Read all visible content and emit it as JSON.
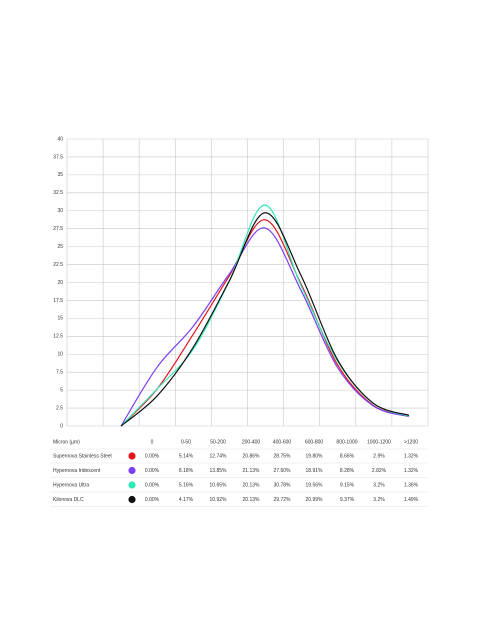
{
  "chart_data": {
    "type": "line",
    "categories": [
      "0",
      "0-50",
      "50-200",
      "200-400",
      "400-600",
      "600-800",
      "800-1000",
      "1000-1200",
      ">1200"
    ],
    "ylim": [
      0,
      40
    ],
    "yticks": [
      0,
      2.5,
      5,
      7.5,
      10,
      12.5,
      15,
      17.5,
      20,
      22.5,
      25,
      27.5,
      30,
      32.5,
      35,
      37.5,
      40
    ],
    "grid": true,
    "table_header": "Micron (µm)",
    "series": [
      {
        "name": "Supernova Stainless Steel",
        "color": "#e8141c",
        "values": [
          0.0,
          5.14,
          12.74,
          20.86,
          28.75,
          19.8,
          8.66,
          2.9,
          1.32
        ],
        "value_labels": [
          "0.00%",
          "5.14%",
          "12.74%",
          "20.86%",
          "28.75%",
          "19.80%",
          "8.66%",
          "2.9%",
          "1.32%"
        ]
      },
      {
        "name": "Hypernova Iridescent",
        "color": "#7b3ff2",
        "values": [
          0.0,
          8.18,
          13.85,
          21.13,
          27.6,
          18.91,
          8.28,
          2.82,
          1.32
        ],
        "value_labels": [
          "0.00%",
          "8.18%",
          "13.85%",
          "21.13%",
          "27.60%",
          "18.91%",
          "8.28%",
          "2.82%",
          "1.32%"
        ]
      },
      {
        "name": "Hypernova Ultra",
        "color": "#2ee8b8",
        "values": [
          0.0,
          5.16,
          10.65,
          20.13,
          30.78,
          19.56,
          9.15,
          3.2,
          1.36
        ],
        "value_labels": [
          "0.00%",
          "5.16%",
          "10.65%",
          "20.13%",
          "30.78%",
          "19.56%",
          "9.15%",
          "3.2%",
          "1.36%"
        ]
      },
      {
        "name": "Kilonova DLC",
        "color": "#111111",
        "values": [
          0.0,
          4.17,
          10.92,
          20.13,
          29.72,
          20.99,
          9.37,
          3.2,
          1.49
        ],
        "value_labels": [
          "0.00%",
          "4.17%",
          "10.92%",
          "20.13%",
          "29.72%",
          "20.99%",
          "9.37%",
          "3.2%",
          "1.49%"
        ]
      }
    ]
  }
}
